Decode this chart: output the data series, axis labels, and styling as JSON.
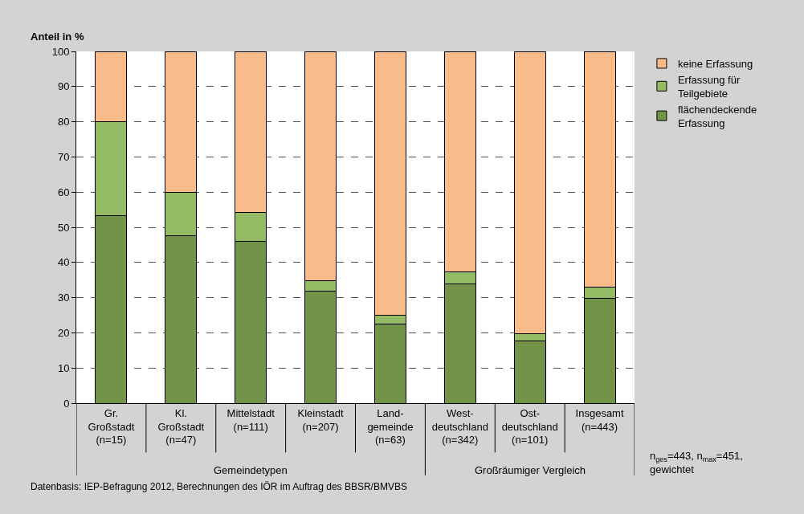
{
  "chart_data": {
    "type": "bar",
    "stacked": true,
    "ylabel": "Anteil in %",
    "categories": [
      "Gr.\nGroßstadt\n(n=15)",
      "Kl.\nGroßstadt\n(n=47)",
      "Mittelstadt\n(n=111)",
      "Kleinstadt\n(n=207)",
      "Land-\ngemeinde\n(n=63)",
      "West-\ndeutschland\n(n=342)",
      "Ost-\ndeutschland\n(n=101)",
      "Insgesamt\n(n=443)"
    ],
    "series": [
      {
        "name": "flächendeckende\nErfassung",
        "color": "#739348",
        "values": [
          53.4,
          47.7,
          46.1,
          31.8,
          22.6,
          33.8,
          17.7,
          29.7
        ]
      },
      {
        "name": "Erfassung für\nTeilgebiete",
        "color": "#94bb64",
        "values": [
          26.6,
          12.3,
          8.2,
          3.0,
          2.3,
          3.5,
          2.1,
          3.2
        ]
      },
      {
        "name": "keine Erfassung",
        "color": "#fabb8a",
        "values": [
          20,
          40,
          45.7,
          65.2,
          75.1,
          62.7,
          80.2,
          67.1
        ]
      }
    ],
    "ylim": [
      0,
      100
    ],
    "yticks": [
      0,
      10,
      20,
      30,
      40,
      50,
      60,
      70,
      80,
      90,
      100
    ],
    "grid": "y",
    "legend": "top right",
    "annotations": [
      "Gemeindetypen",
      "Großräumiger Vergleich",
      "n$_{ges}$=443, n$_{max}$=451, gewichtet",
      "Datenbasis: IEP-Befragung 2012, Berechnungen des IÖR im Auftrag des BBSR/BMVBS"
    ]
  }
}
